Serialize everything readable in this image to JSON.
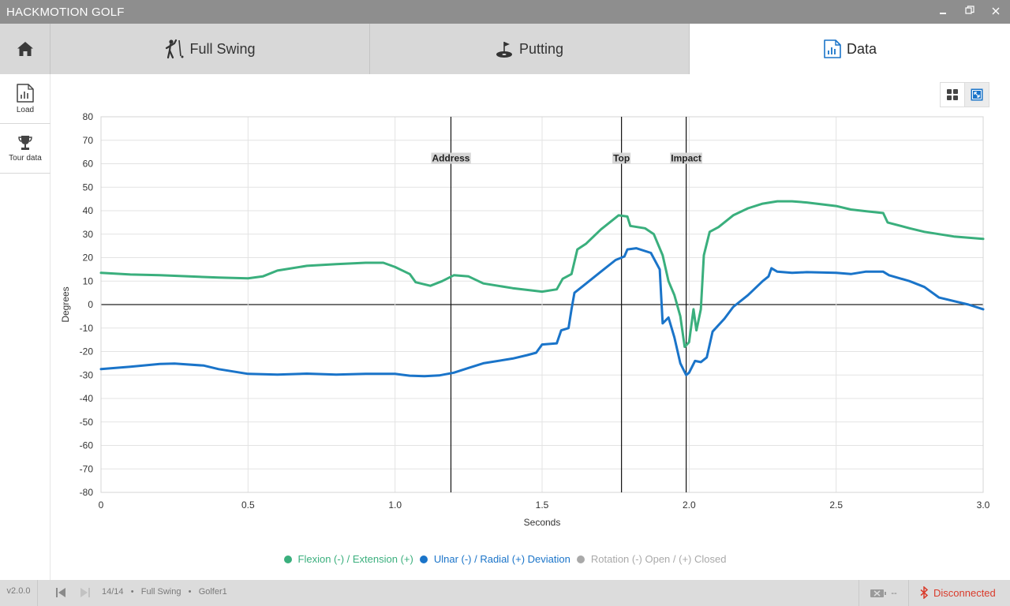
{
  "window": {
    "title": "HACKMOTION GOLF"
  },
  "tabs": [
    {
      "label": "Full Swing",
      "icon": "golfer-icon"
    },
    {
      "label": "Putting",
      "icon": "putting-green-icon"
    },
    {
      "label": "Data",
      "icon": "data-file-icon",
      "active": true
    }
  ],
  "sidebar": {
    "load_label": "Load",
    "tour_label": "Tour data"
  },
  "colors": {
    "green": "#3aaf7d",
    "blue": "#1a74c9",
    "gray": "#a9a9a9",
    "disconnected": "#d93b2b"
  },
  "chart_data": {
    "type": "line",
    "title": "",
    "xlabel": "Seconds",
    "ylabel": "Degrees",
    "xlim": [
      0,
      3.0
    ],
    "ylim": [
      -80,
      80
    ],
    "x_ticks": [
      "0",
      "0.5",
      "1.0",
      "1.5",
      "2.0",
      "2.5",
      "3.0"
    ],
    "y_ticks": [
      "80",
      "70",
      "60",
      "50",
      "40",
      "30",
      "20",
      "10",
      "0",
      "-10",
      "-20",
      "-30",
      "-40",
      "-50",
      "-60",
      "-70",
      "-80"
    ],
    "markers": [
      {
        "label": "Address",
        "x": 1.19
      },
      {
        "label": "Top",
        "x": 1.77
      },
      {
        "label": "Impact",
        "x": 1.99
      }
    ],
    "series": [
      {
        "name": "Flexion (-) / Extension (+)",
        "color": "#3aaf7d",
        "points": [
          [
            0,
            13.5
          ],
          [
            0.1,
            12.8
          ],
          [
            0.2,
            12.5
          ],
          [
            0.3,
            12
          ],
          [
            0.4,
            11.5
          ],
          [
            0.5,
            11.2
          ],
          [
            0.55,
            12
          ],
          [
            0.6,
            14.5
          ],
          [
            0.7,
            16.5
          ],
          [
            0.8,
            17.2
          ],
          [
            0.9,
            17.8
          ],
          [
            0.96,
            17.8
          ],
          [
            1.0,
            16
          ],
          [
            1.05,
            13
          ],
          [
            1.07,
            9.5
          ],
          [
            1.12,
            8
          ],
          [
            1.16,
            10
          ],
          [
            1.2,
            12.5
          ],
          [
            1.25,
            12
          ],
          [
            1.3,
            9
          ],
          [
            1.4,
            7
          ],
          [
            1.5,
            5.5
          ],
          [
            1.55,
            6.5
          ],
          [
            1.57,
            11
          ],
          [
            1.6,
            13
          ],
          [
            1.62,
            23.5
          ],
          [
            1.65,
            26
          ],
          [
            1.7,
            32
          ],
          [
            1.74,
            36
          ],
          [
            1.76,
            38
          ],
          [
            1.79,
            37.5
          ],
          [
            1.8,
            33.5
          ],
          [
            1.85,
            32.5
          ],
          [
            1.88,
            30
          ],
          [
            1.91,
            21
          ],
          [
            1.93,
            10
          ],
          [
            1.95,
            4
          ],
          [
            1.97,
            -5
          ],
          [
            1.985,
            -18
          ],
          [
            2.0,
            -16
          ],
          [
            2.015,
            -2
          ],
          [
            2.025,
            -11
          ],
          [
            2.04,
            -2
          ],
          [
            2.05,
            21
          ],
          [
            2.07,
            31
          ],
          [
            2.1,
            33
          ],
          [
            2.15,
            38
          ],
          [
            2.2,
            41
          ],
          [
            2.25,
            43
          ],
          [
            2.3,
            44
          ],
          [
            2.35,
            44
          ],
          [
            2.4,
            43.5
          ],
          [
            2.5,
            42
          ],
          [
            2.55,
            40.5
          ],
          [
            2.6,
            39.8
          ],
          [
            2.66,
            39
          ],
          [
            2.675,
            35
          ],
          [
            2.69,
            34.5
          ],
          [
            2.75,
            32.5
          ],
          [
            2.8,
            31
          ],
          [
            2.9,
            29
          ],
          [
            2.95,
            28.5
          ],
          [
            3.0,
            28
          ]
        ]
      },
      {
        "name": "Ulnar (-) / Radial (+) Deviation",
        "color": "#1a74c9",
        "points": [
          [
            0,
            -27.5
          ],
          [
            0.1,
            -26.5
          ],
          [
            0.2,
            -25.3
          ],
          [
            0.25,
            -25.1
          ],
          [
            0.35,
            -26
          ],
          [
            0.4,
            -27.5
          ],
          [
            0.5,
            -29.5
          ],
          [
            0.6,
            -29.8
          ],
          [
            0.7,
            -29.4
          ],
          [
            0.8,
            -29.8
          ],
          [
            0.9,
            -29.5
          ],
          [
            1.0,
            -29.5
          ],
          [
            1.05,
            -30.3
          ],
          [
            1.1,
            -30.5
          ],
          [
            1.15,
            -30.2
          ],
          [
            1.2,
            -29
          ],
          [
            1.25,
            -27
          ],
          [
            1.3,
            -25
          ],
          [
            1.4,
            -23
          ],
          [
            1.45,
            -21.5
          ],
          [
            1.48,
            -20.5
          ],
          [
            1.5,
            -17
          ],
          [
            1.55,
            -16.5
          ],
          [
            1.565,
            -11
          ],
          [
            1.59,
            -10
          ],
          [
            1.6,
            -2
          ],
          [
            1.61,
            5
          ],
          [
            1.64,
            8
          ],
          [
            1.7,
            14
          ],
          [
            1.75,
            19
          ],
          [
            1.78,
            20.5
          ],
          [
            1.79,
            23.5
          ],
          [
            1.82,
            24
          ],
          [
            1.87,
            22
          ],
          [
            1.9,
            15
          ],
          [
            1.91,
            -8
          ],
          [
            1.93,
            -5.5
          ],
          [
            1.95,
            -14
          ],
          [
            1.97,
            -25
          ],
          [
            1.99,
            -30
          ],
          [
            2.0,
            -29
          ],
          [
            2.02,
            -24
          ],
          [
            2.04,
            -24.5
          ],
          [
            2.06,
            -22.5
          ],
          [
            2.08,
            -11.5
          ],
          [
            2.12,
            -6
          ],
          [
            2.15,
            -1
          ],
          [
            2.2,
            4
          ],
          [
            2.25,
            10
          ],
          [
            2.27,
            12
          ],
          [
            2.28,
            15.5
          ],
          [
            2.3,
            14
          ],
          [
            2.35,
            13.5
          ],
          [
            2.4,
            13.8
          ],
          [
            2.5,
            13.5
          ],
          [
            2.55,
            13
          ],
          [
            2.6,
            14
          ],
          [
            2.66,
            14
          ],
          [
            2.68,
            12.5
          ],
          [
            2.75,
            10
          ],
          [
            2.8,
            7.5
          ],
          [
            2.85,
            3
          ],
          [
            2.95,
            0
          ],
          [
            3.0,
            -2
          ]
        ]
      },
      {
        "name": "Rotation (-) Open / (+) Closed",
        "color": "#a9a9a9",
        "points": []
      }
    ]
  },
  "status": {
    "version": "v2.0.0",
    "counter": "14/14",
    "mode": "Full Swing",
    "golfer": "Golfer1",
    "battery": "--",
    "connection": "Disconnected"
  }
}
